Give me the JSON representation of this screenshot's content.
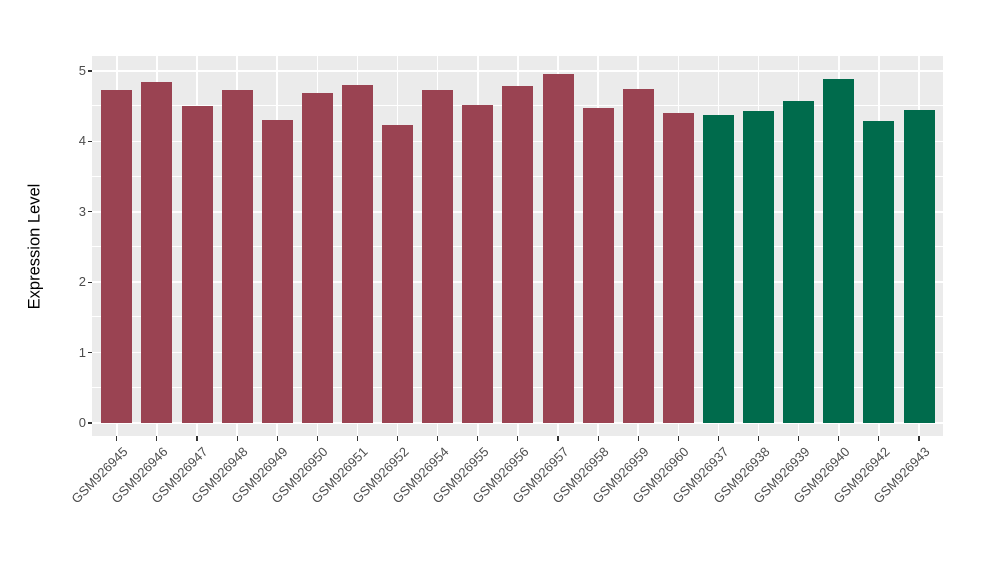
{
  "chart_data": {
    "type": "bar",
    "title": "",
    "xlabel": "",
    "ylabel": "Expression Level",
    "ylim": [
      0,
      5
    ],
    "y_major_ticks": [
      0,
      1,
      2,
      3,
      4,
      5
    ],
    "y_minor_ticks": [
      0.5,
      1.5,
      2.5,
      3.5,
      4.5
    ],
    "grid": "on",
    "legend": "none",
    "categories": [
      "GSM926945",
      "GSM926946",
      "GSM926947",
      "GSM926948",
      "GSM926949",
      "GSM926950",
      "GSM926951",
      "GSM926952",
      "GSM926954",
      "GSM926955",
      "GSM926956",
      "GSM926957",
      "GSM926958",
      "GSM926959",
      "GSM926960",
      "GSM926937",
      "GSM926938",
      "GSM926939",
      "GSM926940",
      "GSM926942",
      "GSM926943"
    ],
    "values": [
      4.73,
      4.85,
      4.5,
      4.73,
      4.3,
      4.69,
      4.8,
      4.23,
      4.73,
      4.52,
      4.79,
      4.96,
      4.48,
      4.74,
      4.41,
      4.38,
      4.43,
      4.57,
      4.89,
      4.29,
      4.45
    ],
    "colors": [
      "#9A4352",
      "#9A4352",
      "#9A4352",
      "#9A4352",
      "#9A4352",
      "#9A4352",
      "#9A4352",
      "#9A4352",
      "#9A4352",
      "#9A4352",
      "#9A4352",
      "#9A4352",
      "#9A4352",
      "#9A4352",
      "#9A4352",
      "#006B4C",
      "#006B4C",
      "#006B4C",
      "#006B4C",
      "#006B4C",
      "#006B4C"
    ],
    "group_colors": {
      "red_group": "#9A4352",
      "green_group": "#006B4C"
    }
  },
  "style": {
    "panel_background": "#EBEBEB",
    "grid_color": "#FFFFFF",
    "tick_mark_color": "#333333",
    "tick_label_color": "#4D4D4D",
    "axis_title_color": "#000000",
    "figure_background": "#FFFFFF"
  }
}
